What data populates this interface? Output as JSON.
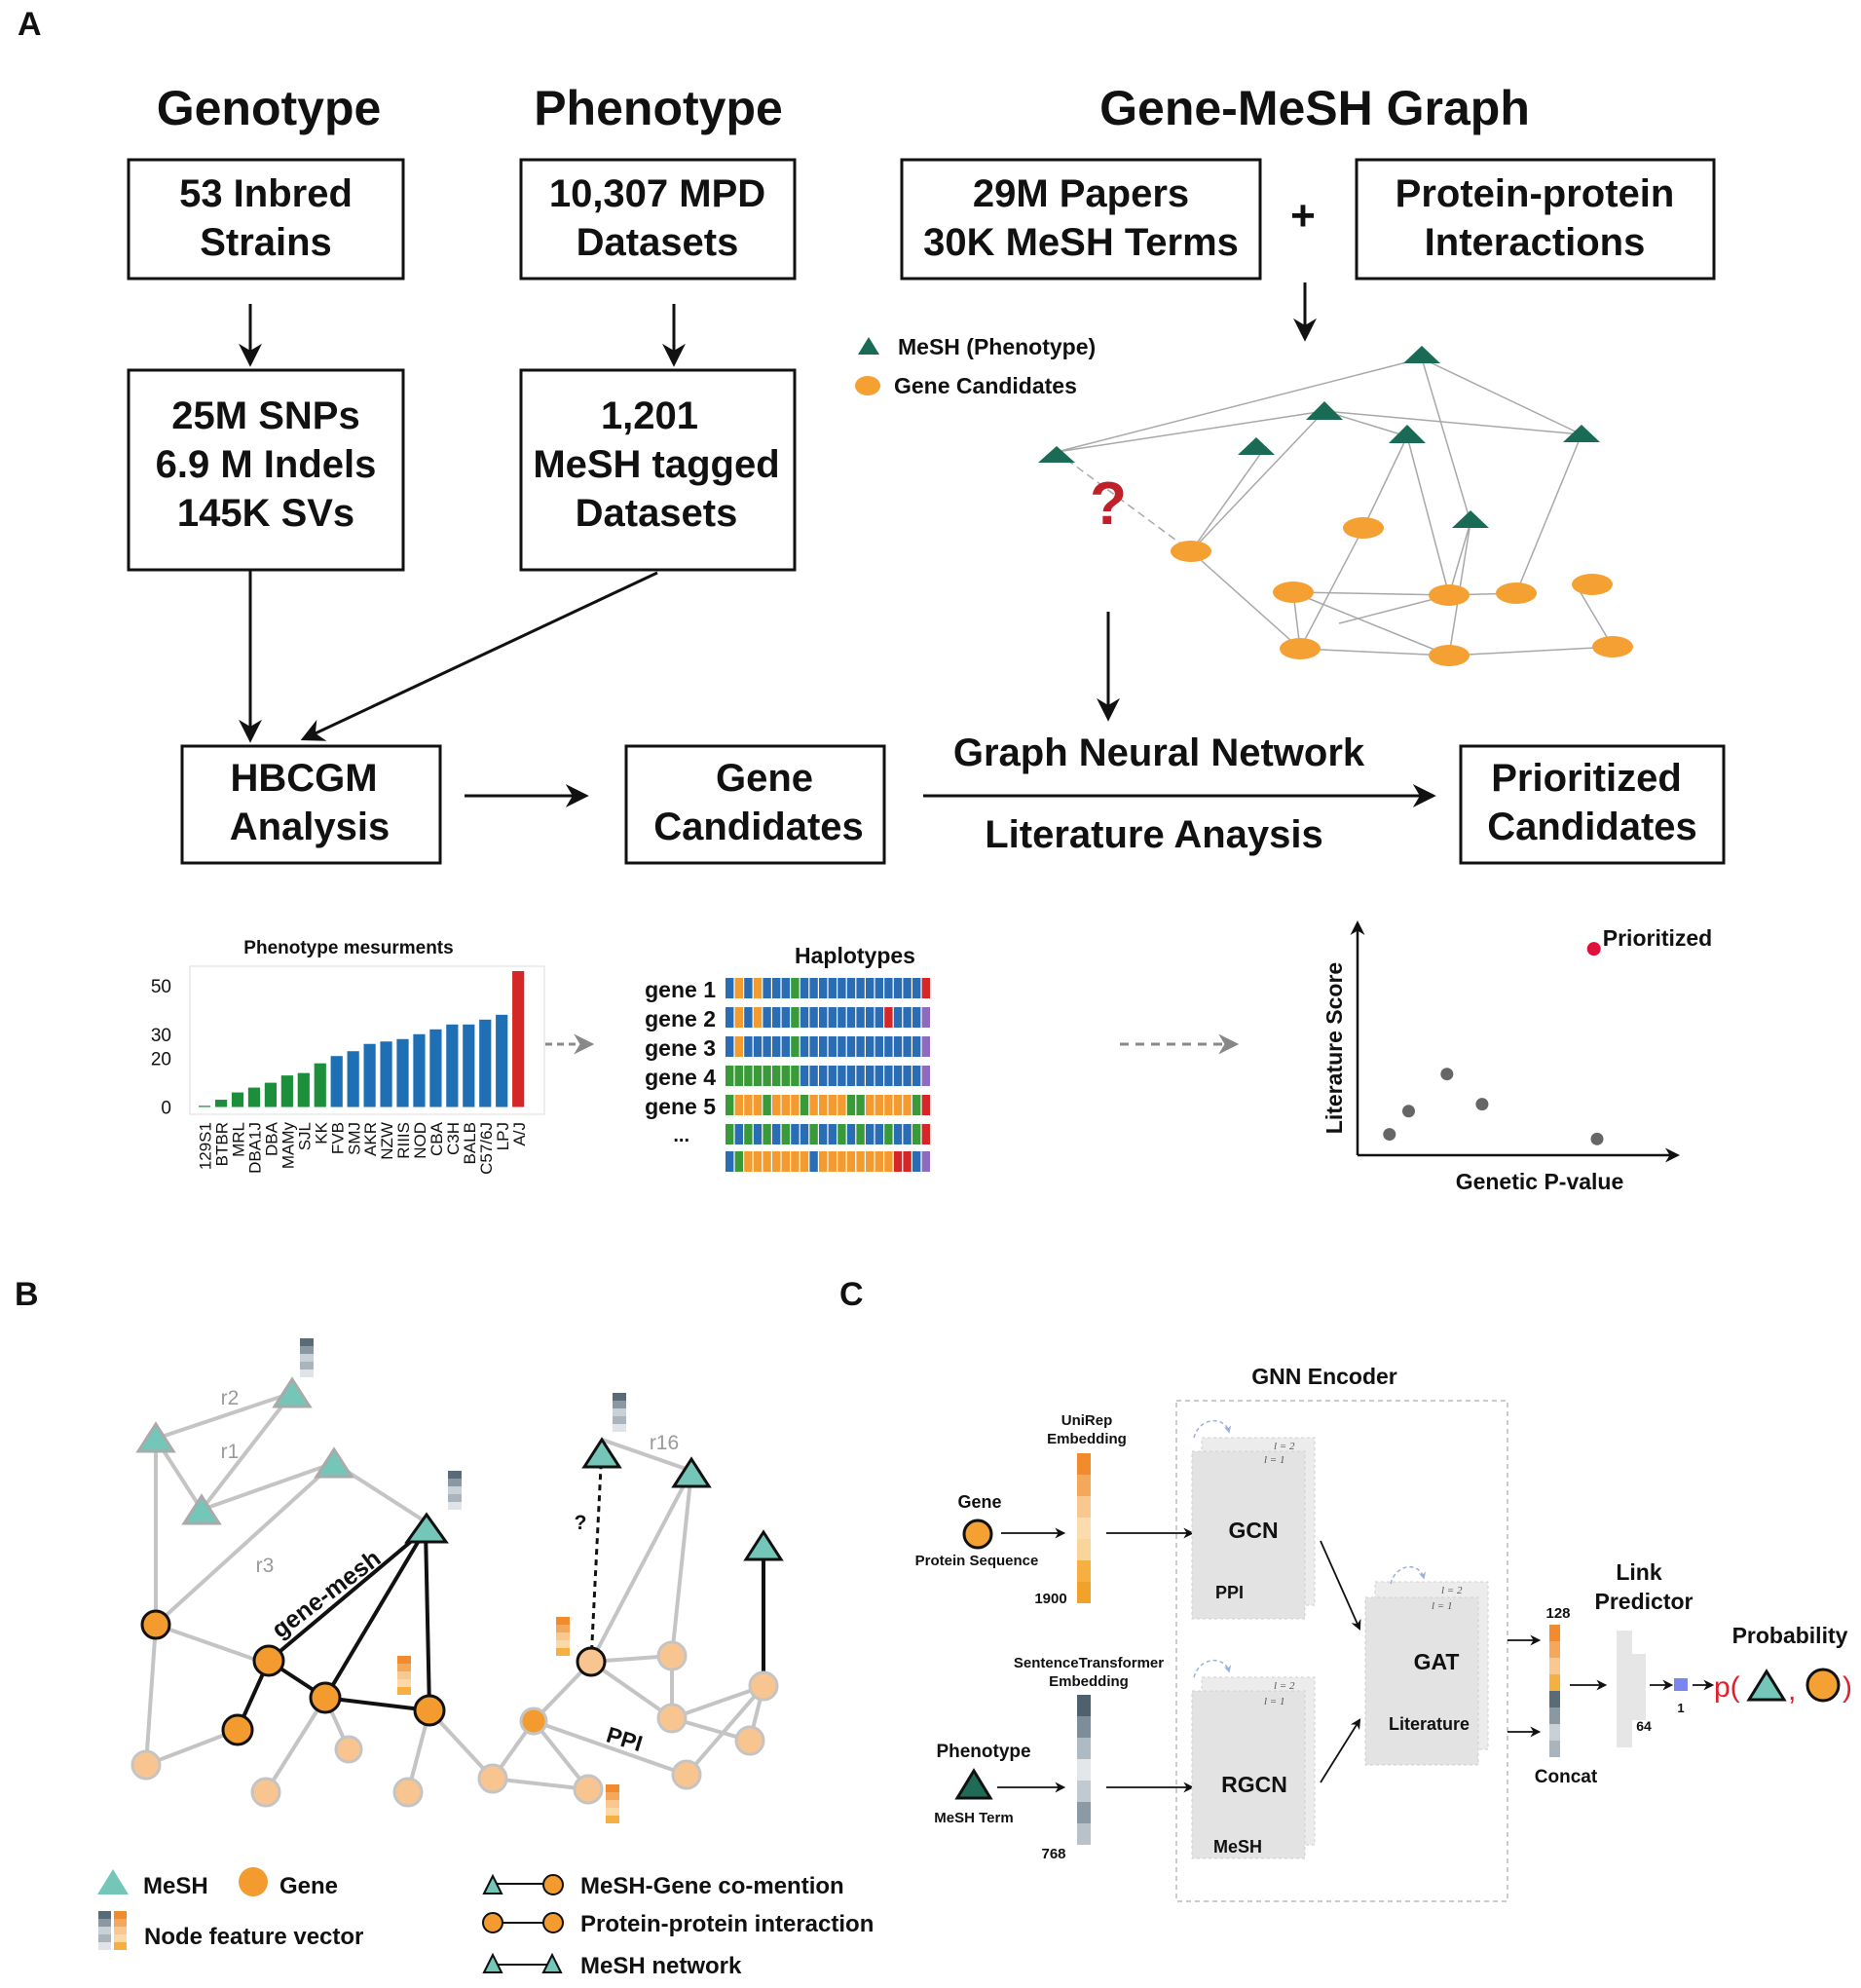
{
  "panel_labels": {
    "a": "A",
    "b": "B",
    "c": "C"
  },
  "panel_a": {
    "col_titles": {
      "genotype": "Genotype",
      "phenotype": "Phenotype",
      "graph": "Gene-MeSH Graph"
    },
    "box_strains": [
      "53 Inbred",
      "Strains"
    ],
    "box_mpd": [
      "10,307 MPD",
      "Datasets"
    ],
    "box_papers": [
      "29M Papers",
      "30K MeSH Terms"
    ],
    "plus": "+",
    "box_ppi": [
      "Protein-protein",
      "Interactions"
    ],
    "box_variants": [
      "25M SNPs",
      "6.9 M Indels",
      "145K SVs"
    ],
    "box_mesh_tagged": [
      "1,201",
      "MeSH tagged",
      "Datasets"
    ],
    "legend_mesh": "MeSH (Phenotype)",
    "legend_gene": "Gene Candidates",
    "question": "?",
    "box_hbcgm": [
      "HBCGM",
      "Analysis"
    ],
    "box_candidates": [
      "Gene",
      "Candidates"
    ],
    "gnn_label": "Graph Neural Network",
    "lit_label": "Literature Anaysis",
    "box_prioritized": [
      "Prioritized",
      "Candidates"
    ],
    "haplotypes": {
      "title": "Haplotypes",
      "rows": [
        "gene 1",
        "gene 2",
        "gene 3",
        "gene 4",
        "gene 5",
        "..."
      ]
    },
    "scatter_labels": {
      "x": "Genetic P-value",
      "y": "Literature Score",
      "annotation": "Prioritized"
    },
    "colors": {
      "mesh": "#1a6b55",
      "gene": "#f5a033",
      "question": "#c0202a",
      "green_bar": "#1b8f3a",
      "blue_bar": "#1f6fb5",
      "red_bar": "#d62728"
    }
  },
  "chart_data": [
    {
      "type": "bar",
      "title": "Phenotype mesurments",
      "categories": [
        "129S1",
        "BTBR",
        "MRL",
        "DBA1J",
        "DBA",
        "MAMy",
        "SJL",
        "KK",
        "FVB",
        "SMJ",
        "AKR",
        "NZW",
        "RIIIS",
        "NOD",
        "CBA",
        "C3H",
        "BALB",
        "C57/6J",
        "LPJ",
        "A/J"
      ],
      "values": [
        0.5,
        3,
        6,
        8,
        10,
        13,
        14,
        18,
        21,
        23,
        26,
        27,
        28,
        30,
        32,
        34,
        34,
        36,
        38,
        56
      ],
      "bar_colors": [
        "#1b8f3a",
        "#1b8f3a",
        "#1b8f3a",
        "#1b8f3a",
        "#1b8f3a",
        "#1b8f3a",
        "#1b8f3a",
        "#1b8f3a",
        "#1f6fb5",
        "#1f6fb5",
        "#1f6fb5",
        "#1f6fb5",
        "#1f6fb5",
        "#1f6fb5",
        "#1f6fb5",
        "#1f6fb5",
        "#1f6fb5",
        "#1f6fb5",
        "#1f6fb5",
        "#d62728"
      ],
      "yticks": [
        0,
        20,
        30,
        50
      ],
      "ylim": [
        -3,
        58
      ],
      "xlabel": "",
      "ylabel": ""
    },
    {
      "type": "scatter",
      "title": "",
      "xlabel": "Genetic P-value",
      "ylabel": "Literature Score",
      "xlim": [
        0,
        10
      ],
      "ylim": [
        0,
        10
      ],
      "points": [
        {
          "x": 1.0,
          "y": 0.9
        },
        {
          "x": 1.6,
          "y": 1.9
        },
        {
          "x": 2.8,
          "y": 3.5
        },
        {
          "x": 3.9,
          "y": 2.2
        },
        {
          "x": 7.4,
          "y": 8.9,
          "highlight": true
        },
        {
          "x": 7.5,
          "y": 0.7
        }
      ]
    }
  ],
  "panel_b": {
    "rel_labels": {
      "r1": "r1",
      "r2": "r2",
      "r3": "r3",
      "r16": "r16"
    },
    "edge_gene_mesh": "gene-mesh",
    "edge_ppi": "PPI",
    "question": "?",
    "legend": {
      "mesh": "MeSH",
      "gene": "Gene",
      "feature": "Node feature vector",
      "comention": "MeSH-Gene co-mention",
      "ppi": "Protein-protein interaction",
      "mesh_net": "MeSH network"
    },
    "colors": {
      "mesh": "#74c6b8",
      "gene": "#f39b2f",
      "gene_light": "#f8c590",
      "edge": "#c0c0c0"
    }
  },
  "panel_c": {
    "encoder_title": "GNN Encoder",
    "unirep": [
      "UniRep",
      "Embedding"
    ],
    "gene": "Gene",
    "protein_seq": "Protein Sequence",
    "dim_1900": "1900",
    "st_embedding": [
      "SentenceTransformer",
      "Embedding"
    ],
    "phenotype": "Phenotype",
    "mesh_term": "MeSH Term",
    "dim_768": "768",
    "gcn": "GCN",
    "ppi": "PPI",
    "rgcn": "RGCN",
    "mesh": "MeSH",
    "gat": "GAT",
    "literature": "Literature",
    "layer_l2": "l = 2",
    "layer_l1": "l = 1",
    "dim_128": "128",
    "concat": "Concat",
    "link_predictor": [
      "Link",
      "Predictor"
    ],
    "dim_64": "64",
    "dim_1": "1",
    "probability": "Probability",
    "prob_open": "p(",
    "prob_comma": ",",
    "prob_close": ")"
  }
}
